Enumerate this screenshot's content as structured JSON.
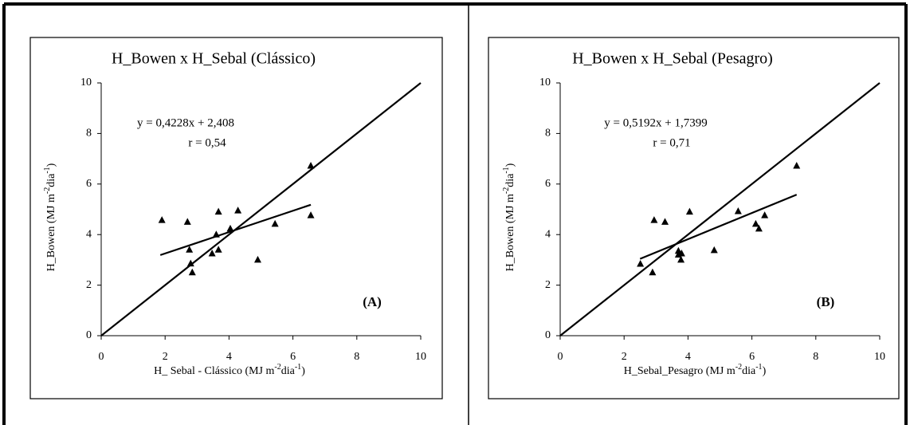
{
  "chart_data": [
    {
      "type": "scatter",
      "title": "H_Bowen x H_Sebal (Clássico)",
      "xlabel": [
        "H_ Sebal - Clássico (MJ m",
        "-2",
        "dia",
        "-1",
        ")"
      ],
      "ylabel": [
        "H_Bowen  (MJ m",
        "-2",
        "dia",
        "-1",
        ")"
      ],
      "equation": "y = 0,4228x + 2,408",
      "r_text": "r = 0,54",
      "panel_label": "(A)",
      "series": [
        {
          "color": "#000000",
          "x": [
            1.9,
            2.7,
            2.76,
            2.8,
            2.85,
            3.67,
            3.47,
            3.67,
            3.6,
            4.04,
            4.28,
            4.9,
            5.44,
            6.56,
            6.56
          ],
          "values": [
            4.57,
            4.5,
            3.4,
            2.85,
            2.5,
            4.9,
            3.25,
            3.4,
            4.0,
            4.23,
            4.95,
            3.0,
            4.42,
            4.76,
            6.72
          ]
        }
      ],
      "fit_line": {
        "x": [
          1.85,
          6.56
        ],
        "values": [
          3.19,
          5.18
        ]
      },
      "reference_line": {
        "x": [
          0,
          10
        ],
        "values": [
          0,
          10
        ]
      },
      "xlim": [
        0,
        10
      ],
      "ylim": [
        0,
        10
      ],
      "xticks": [
        0,
        2,
        4,
        6,
        8,
        10
      ],
      "yticks": [
        0,
        2,
        4,
        6,
        8,
        10
      ]
    },
    {
      "type": "scatter",
      "title": "H_Bowen x H_Sebal (Pesagro)",
      "xlabel": [
        "H_Sebal_Pesagro  (MJ m",
        "-2",
        "dia",
        "-1",
        ")"
      ],
      "ylabel": [
        "H_Bowen  (MJ m",
        "-2",
        "dia",
        "-1",
        ")"
      ],
      "equation": "y = 0,5192x + 1,7399",
      "r_text": "r = 0,71",
      "panel_label": "(B)",
      "series": [
        {
          "color": "#000000",
          "x": [
            2.51,
            2.89,
            2.94,
            3.28,
            4.05,
            3.7,
            3.8,
            3.78,
            3.7,
            4.82,
            5.57,
            6.12,
            6.22,
            6.4,
            7.4
          ],
          "values": [
            2.84,
            2.5,
            4.57,
            4.5,
            4.9,
            3.35,
            3.25,
            3.0,
            3.2,
            3.38,
            4.92,
            4.42,
            4.23,
            4.76,
            6.72
          ]
        }
      ],
      "fit_line": {
        "x": [
          2.5,
          7.4
        ],
        "values": [
          3.04,
          5.58
        ]
      },
      "reference_line": {
        "x": [
          0,
          10
        ],
        "values": [
          0,
          10
        ]
      },
      "xlim": [
        0,
        10
      ],
      "ylim": [
        0,
        10
      ],
      "xticks": [
        0,
        2,
        4,
        6,
        8,
        10
      ],
      "yticks": [
        0,
        2,
        4,
        6,
        8,
        10
      ]
    }
  ]
}
